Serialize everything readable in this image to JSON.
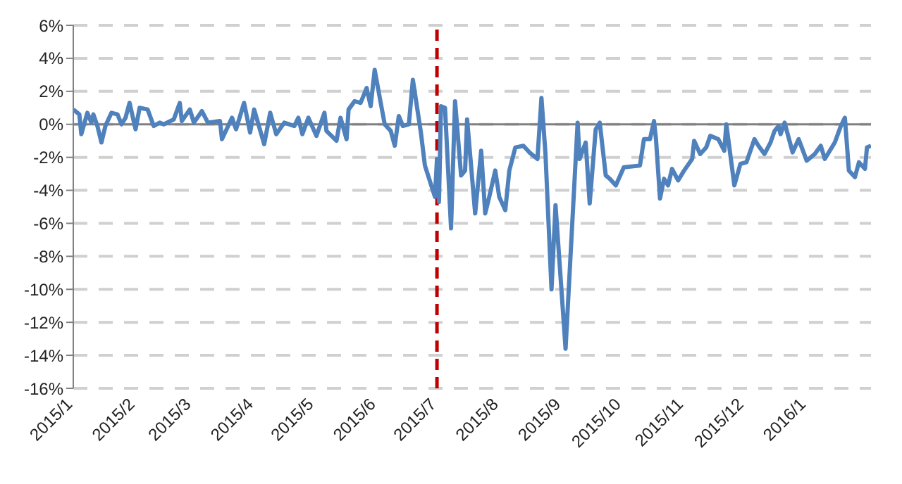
{
  "chart_data": {
    "type": "line",
    "x": [
      "2015-01-01",
      "2015-01-04",
      "2015-01-05",
      "2015-01-08",
      "2015-01-10",
      "2015-01-11",
      "2015-01-13",
      "2015-01-15",
      "2015-01-17",
      "2015-01-20",
      "2015-01-23",
      "2015-01-25",
      "2015-01-27",
      "2015-01-29",
      "2015-02-01",
      "2015-02-03",
      "2015-02-07",
      "2015-02-10",
      "2015-02-13",
      "2015-02-15",
      "2015-02-20",
      "2015-02-23",
      "2015-02-24",
      "2015-02-28",
      "2015-03-02",
      "2015-03-06",
      "2015-03-09",
      "2015-03-15",
      "2015-03-16",
      "2015-03-21",
      "2015-03-23",
      "2015-03-27",
      "2015-03-30",
      "2015-04-01",
      "2015-04-06",
      "2015-04-09",
      "2015-04-12",
      "2015-04-16",
      "2015-04-21",
      "2015-04-23",
      "2015-04-25",
      "2015-04-28",
      "2015-05-02",
      "2015-05-06",
      "2015-05-07",
      "2015-05-12",
      "2015-05-14",
      "2015-05-17",
      "2015-05-18",
      "2015-05-21",
      "2015-05-24",
      "2015-05-27",
      "2015-05-29",
      "2015-05-31",
      "2015-06-03",
      "2015-06-05",
      "2015-06-08",
      "2015-06-10",
      "2015-06-12",
      "2015-06-14",
      "2015-06-17",
      "2015-06-19",
      "2015-06-23",
      "2015-06-25",
      "2015-06-30",
      "2015-07-01",
      "2015-07-02",
      "2015-07-03",
      "2015-07-05",
      "2015-07-08",
      "2015-07-10",
      "2015-07-13",
      "2015-07-15",
      "2015-07-16",
      "2015-07-20",
      "2015-07-23",
      "2015-07-25",
      "2015-07-27",
      "2015-07-30",
      "2015-08-01",
      "2015-08-04",
      "2015-08-06",
      "2015-08-09",
      "2015-08-13",
      "2015-08-16",
      "2015-08-20",
      "2015-08-22",
      "2015-08-24",
      "2015-08-27",
      "2015-08-29",
      "2015-09-03",
      "2015-09-09",
      "2015-09-10",
      "2015-09-13",
      "2015-09-15",
      "2015-09-18",
      "2015-09-20",
      "2015-09-23",
      "2015-09-25",
      "2015-09-28",
      "2015-10-02",
      "2015-10-10",
      "2015-10-12",
      "2015-10-15",
      "2015-10-17",
      "2015-10-18",
      "2015-10-20",
      "2015-10-22",
      "2015-10-24",
      "2015-10-26",
      "2015-10-29",
      "2015-11-01",
      "2015-11-05",
      "2015-11-06",
      "2015-11-09",
      "2015-11-12",
      "2015-11-14",
      "2015-11-18",
      "2015-11-21",
      "2015-11-22",
      "2015-11-26",
      "2015-11-29",
      "2015-12-02",
      "2015-12-06",
      "2015-12-08",
      "2015-12-11",
      "2015-12-14",
      "2015-12-16",
      "2015-12-18",
      "2015-12-19",
      "2015-12-21",
      "2015-12-25",
      "2015-12-28",
      "2016-01-01",
      "2016-01-05",
      "2016-01-08",
      "2016-01-10",
      "2016-01-15",
      "2016-01-18",
      "2016-01-20",
      "2016-01-22",
      "2016-01-25",
      "2016-01-27",
      "2016-01-30",
      "2016-01-31",
      "2016-02-02"
    ],
    "series": [
      {
        "color": "#4f81bd",
        "values": [
          0.9,
          0.6,
          -0.6,
          0.7,
          0.1,
          0.6,
          -0.1,
          -1.1,
          -0.1,
          0.7,
          0.6,
          0,
          0.4,
          1.3,
          -0.3,
          1.0,
          0.9,
          -0.1,
          0.1,
          0,
          0.3,
          1.3,
          0.2,
          0.9,
          0.1,
          0.8,
          0.1,
          0.2,
          -0.9,
          0.4,
          -0.3,
          1.3,
          -0.5,
          0.9,
          -1.2,
          0.7,
          -0.6,
          0.1,
          -0.1,
          0.4,
          -0.6,
          0.4,
          -0.7,
          0.7,
          -0.4,
          -1.0,
          0.4,
          -0.9,
          0.9,
          1.4,
          1.3,
          2.2,
          1.1,
          3.3,
          1.3,
          0,
          -0.4,
          -1.3,
          0.5,
          -0.1,
          0,
          2.7,
          -0.5,
          -2.5,
          -4.4,
          -2.1,
          -4.7,
          1.1,
          1.0,
          -6.3,
          1.4,
          -3.1,
          -2.8,
          0.3,
          -5.4,
          -1.6,
          -5.4,
          -4.4,
          -2.8,
          -4.4,
          -5.2,
          -2.8,
          -1.4,
          -1.3,
          -1.7,
          -2.1,
          1.6,
          -1.8,
          -10.0,
          -4.9,
          -13.6,
          0.1,
          -2.1,
          -1.1,
          -4.8,
          -0.3,
          0.1,
          -3.1,
          -3.3,
          -3.7,
          -2.6,
          -2.5,
          -0.9,
          -0.9,
          0.2,
          -0.9,
          -4.5,
          -3.3,
          -3.7,
          -2.7,
          -3.4,
          -2.8,
          -2.1,
          -1.0,
          -1.8,
          -1.4,
          -0.7,
          -0.9,
          -1.6,
          0,
          -3.7,
          -2.4,
          -2.3,
          -0.9,
          -1.3,
          -1.8,
          -1.1,
          -0.4,
          -0.1,
          -0.6,
          0.1,
          -1.7,
          -0.9,
          -2.2,
          -1.8,
          -1.3,
          -2.1,
          -1.1,
          -0.1,
          0.4,
          -2.8,
          -3.2,
          -2.3,
          -2.7,
          -1.4,
          -1.3
        ]
      }
    ],
    "xlim": [
      "2015-01-01",
      "2016-02-02"
    ],
    "xticks": [
      {
        "value": "2015-01-01",
        "label": "2015/1"
      },
      {
        "value": "2015-02-01",
        "label": "2015/2"
      },
      {
        "value": "2015-03-01",
        "label": "2015/3"
      },
      {
        "value": "2015-04-01",
        "label": "2015/4"
      },
      {
        "value": "2015-05-01",
        "label": "2015/5"
      },
      {
        "value": "2015-06-01",
        "label": "2015/6"
      },
      {
        "value": "2015-07-01",
        "label": "2015/7"
      },
      {
        "value": "2015-08-01",
        "label": "2015/8"
      },
      {
        "value": "2015-09-01",
        "label": "2015/9"
      },
      {
        "value": "2015-10-01",
        "label": "2015/10"
      },
      {
        "value": "2015-11-01",
        "label": "2015/11"
      },
      {
        "value": "2015-12-01",
        "label": "2015/12"
      },
      {
        "value": "2016-01-01",
        "label": "2016/1"
      }
    ],
    "ylim": [
      -16,
      6
    ],
    "yticks": [
      {
        "value": -16,
        "label": "-16%"
      },
      {
        "value": -14,
        "label": "-14%"
      },
      {
        "value": -12,
        "label": "-12%"
      },
      {
        "value": -10,
        "label": "-10%"
      },
      {
        "value": -8,
        "label": "-8%"
      },
      {
        "value": -6,
        "label": "-6%"
      },
      {
        "value": -4,
        "label": "-4%"
      },
      {
        "value": -2,
        "label": "-2%"
      },
      {
        "value": 0,
        "label": "0%"
      },
      {
        "value": 2,
        "label": "2%"
      },
      {
        "value": 4,
        "label": "4%"
      },
      {
        "value": 6,
        "label": "6%"
      }
    ],
    "grid": "y",
    "legend": false,
    "marker": "none",
    "line_style": "solid",
    "ref_lines": [
      {
        "axis": "y",
        "value": 0,
        "color": "#808080",
        "line_style": "solid"
      },
      {
        "axis": "x",
        "value": "2015-07-01",
        "color": "#c00000",
        "line_style": "dashed"
      }
    ]
  }
}
